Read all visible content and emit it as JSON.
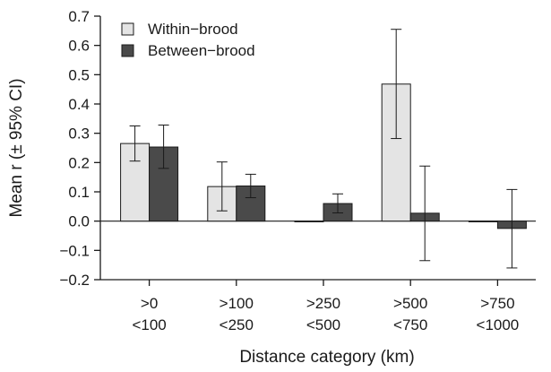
{
  "chart_data": {
    "type": "bar",
    "title": "",
    "xlabel": "Distance category (km)",
    "ylabel": "Mean r (± 95% CI)",
    "ylim": [
      -0.2,
      0.7
    ],
    "yticks": [
      "-0.2",
      "-0.1",
      "0.0",
      "0.1",
      "0.2",
      "0.3",
      "0.4",
      "0.5",
      "0.6",
      "0.7"
    ],
    "categories": [
      {
        "line1": ">0",
        "line2": "<100"
      },
      {
        "line1": ">100",
        "line2": "<250"
      },
      {
        "line1": ">250",
        "line2": "<500"
      },
      {
        "line1": ">500",
        "line2": "<750"
      },
      {
        "line1": ">750",
        "line2": "<1000"
      }
    ],
    "series": [
      {
        "name": "Within−brood",
        "color": "#e4e4e4",
        "values": [
          0.265,
          0.118,
          0.0,
          0.468,
          0.0
        ],
        "ci_low": [
          0.205,
          0.035,
          null,
          0.282,
          null
        ],
        "ci_high": [
          0.325,
          0.202,
          null,
          0.655,
          null
        ]
      },
      {
        "name": "Between−brood",
        "color": "#4a4a4a",
        "values": [
          0.253,
          0.12,
          0.06,
          0.027,
          -0.025
        ],
        "ci_low": [
          0.18,
          0.08,
          0.028,
          -0.135,
          -0.16
        ],
        "ci_high": [
          0.328,
          0.16,
          0.093,
          0.188,
          0.108
        ]
      }
    ],
    "legend_position": "top-left",
    "grid": false
  }
}
